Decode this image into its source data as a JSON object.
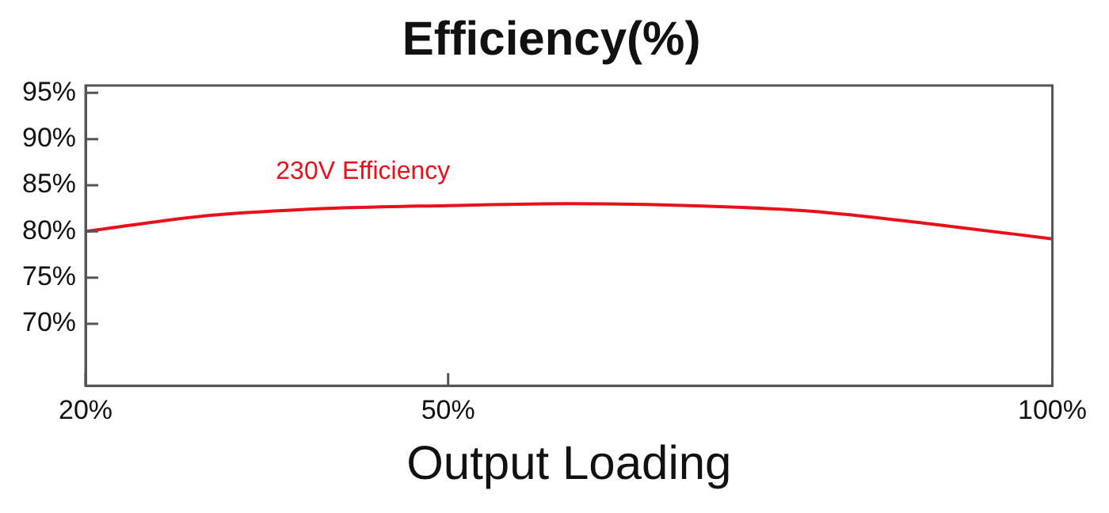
{
  "chart_data": {
    "type": "line",
    "title": "Efficiency(%)",
    "xlabel": "Output Loading",
    "x": [
      20,
      30,
      40,
      50,
      60,
      70,
      80,
      90,
      100
    ],
    "series": [
      {
        "name": "230V Efficiency",
        "color": "#e8101a",
        "values": [
          80.0,
          81.7,
          82.5,
          82.8,
          83.0,
          82.8,
          82.2,
          80.8,
          79.2
        ]
      }
    ],
    "xlim": [
      20,
      100
    ],
    "xticks": [
      {
        "value": 20,
        "label": "20%"
      },
      {
        "value": 50,
        "label": "50%"
      },
      {
        "value": 100,
        "label": "100%"
      }
    ],
    "ylim": [
      63.3,
      95.8
    ],
    "yticks": [
      {
        "value": 70,
        "label": "70%"
      },
      {
        "value": 75,
        "label": "75%"
      },
      {
        "value": 80,
        "label": "80%"
      },
      {
        "value": 85,
        "label": "85%"
      },
      {
        "value": 90,
        "label": "90%"
      },
      {
        "value": 95,
        "label": "95%"
      }
    ],
    "grid": false,
    "legend": false,
    "marker": "none",
    "line_style": "solid"
  }
}
